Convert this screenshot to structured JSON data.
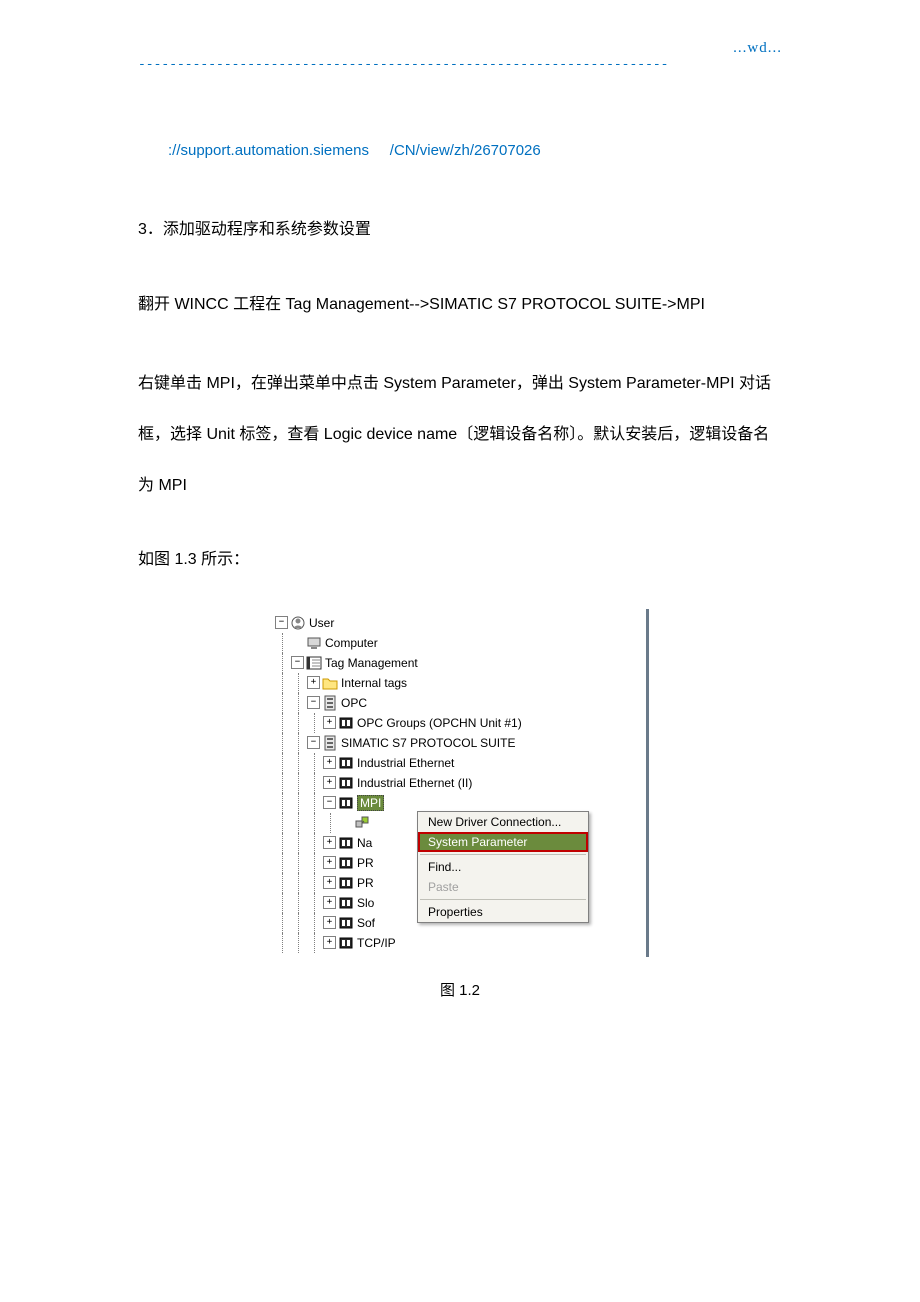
{
  "header": {
    "right_text": "...wd...",
    "dash_char": "-",
    "dash_count": 68
  },
  "url": {
    "part1": "://support.automation.siemens",
    "part2": "/CN/view/zh/26707026"
  },
  "section_heading": "3．添加驱动程序和系统参数设置",
  "paragraph1": "翻开 WINCC 工程在 Tag Management-->SIMATIC S7 PROTOCOL SUITE->MPI",
  "paragraph2": "右键单击 MPI，在弹出菜单中点击 System Parameter，弹出 System Parameter-MPI 对话框，选择 Unit 标签，查看 Logic device name〔逻辑设备名称〕。默认安装后，逻辑设备名为 MPI",
  "paragraph3": "如图 1.3 所示：",
  "caption": "图 1.2",
  "tree": {
    "nodes": [
      {
        "indent": 0,
        "toggle": "-",
        "icon": "user",
        "label": "User"
      },
      {
        "indent": 1,
        "toggle": "",
        "icon": "computer",
        "label": "Computer"
      },
      {
        "indent": 1,
        "toggle": "-",
        "icon": "tagmgmt",
        "label": "Tag Management"
      },
      {
        "indent": 2,
        "toggle": "+",
        "icon": "folder",
        "label": "Internal tags"
      },
      {
        "indent": 2,
        "toggle": "-",
        "icon": "driver",
        "label": "OPC"
      },
      {
        "indent": 3,
        "toggle": "+",
        "icon": "channel",
        "label": "OPC Groups (OPCHN Unit #1)"
      },
      {
        "indent": 2,
        "toggle": "-",
        "icon": "driver",
        "label": "SIMATIC S7 PROTOCOL SUITE"
      },
      {
        "indent": 3,
        "toggle": "+",
        "icon": "channel",
        "label": "Industrial Ethernet"
      },
      {
        "indent": 3,
        "toggle": "+",
        "icon": "channel",
        "label": "Industrial Ethernet (II)"
      },
      {
        "indent": 3,
        "toggle": "-",
        "icon": "channel",
        "label": "MPI",
        "selected": true
      },
      {
        "indent": 4,
        "toggle": "",
        "icon": "conn",
        "label": ""
      },
      {
        "indent": 3,
        "toggle": "+",
        "icon": "channel",
        "label": "Na"
      },
      {
        "indent": 3,
        "toggle": "+",
        "icon": "channel",
        "label": "PR"
      },
      {
        "indent": 3,
        "toggle": "+",
        "icon": "channel",
        "label": "PR"
      },
      {
        "indent": 3,
        "toggle": "+",
        "icon": "channel",
        "label": "Slo"
      },
      {
        "indent": 3,
        "toggle": "+",
        "icon": "channel",
        "label": "Sof"
      },
      {
        "indent": 3,
        "toggle": "+",
        "icon": "channel",
        "label": "TCP/IP"
      }
    ]
  },
  "context_menu": {
    "items": [
      {
        "label": "New Driver Connection...",
        "type": "normal"
      },
      {
        "label": "System Parameter",
        "type": "highlight"
      },
      {
        "type": "separator"
      },
      {
        "label": "Find...",
        "type": "normal"
      },
      {
        "label": "Paste",
        "type": "disabled"
      },
      {
        "type": "separator"
      },
      {
        "label": "Properties",
        "type": "normal"
      }
    ]
  },
  "colors": {
    "link": "#0070c0",
    "highlight_bg": "#6b8b3d",
    "highlight_border": "#c00000",
    "menu_bg": "#f4f3ee"
  }
}
